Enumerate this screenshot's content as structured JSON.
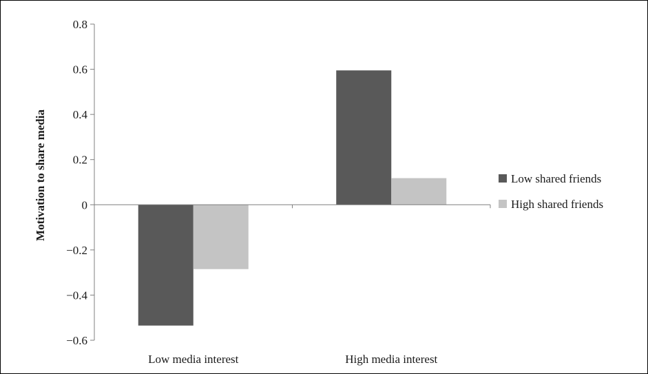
{
  "chart_data": {
    "type": "bar",
    "title": "",
    "xlabel": "",
    "ylabel": "Motivation to share media",
    "ylim": [
      -0.6,
      0.8
    ],
    "yticks": [
      0.8,
      0.6,
      0.4,
      0.2,
      0,
      -0.2,
      -0.4,
      -0.6
    ],
    "ytick_labels": [
      "0.8",
      "0.6",
      "0.4",
      "0.2",
      "0",
      "−0.2",
      "−0.4",
      "−0.6"
    ],
    "categories": [
      "Low media interest",
      "High media interest"
    ],
    "series": [
      {
        "name": "Low shared friends",
        "values": [
          -0.535,
          0.595
        ],
        "color": "#595959"
      },
      {
        "name": "High shared friends",
        "values": [
          -0.285,
          0.118
        ],
        "color": "#c4c4c4"
      }
    ],
    "grid": false,
    "legend_position": "right"
  }
}
